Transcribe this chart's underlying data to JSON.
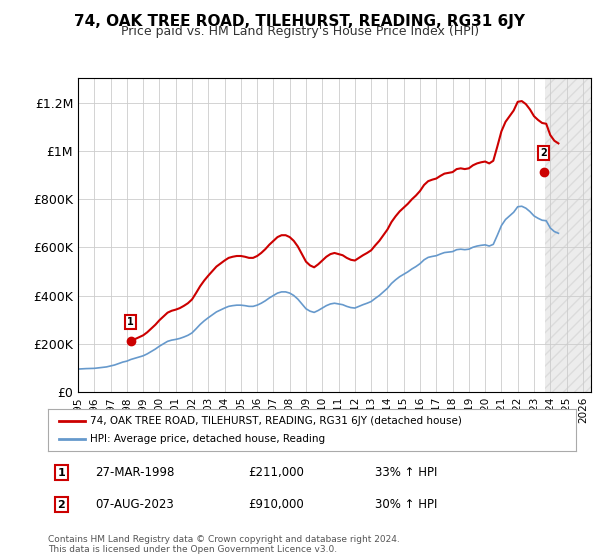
{
  "title": "74, OAK TREE ROAD, TILEHURST, READING, RG31 6JY",
  "subtitle": "Price paid vs. HM Land Registry's House Price Index (HPI)",
  "ylabel_ticks": [
    "£0",
    "£200K",
    "£400K",
    "£600K",
    "£800K",
    "£1M",
    "£1.2M"
  ],
  "ytick_values": [
    0,
    200000,
    400000,
    600000,
    800000,
    1000000,
    1200000
  ],
  "ylim": [
    0,
    1300000
  ],
  "xlim_start": 1995.0,
  "xlim_end": 2026.5,
  "xticks": [
    1995,
    1996,
    1997,
    1998,
    1999,
    2000,
    2001,
    2002,
    2003,
    2004,
    2005,
    2006,
    2007,
    2008,
    2009,
    2010,
    2011,
    2012,
    2013,
    2014,
    2015,
    2016,
    2017,
    2018,
    2019,
    2020,
    2021,
    2022,
    2023,
    2024,
    2025,
    2026
  ],
  "property_color": "#cc0000",
  "hpi_color": "#6699cc",
  "property_label": "74, OAK TREE ROAD, TILEHURST, READING, RG31 6JY (detached house)",
  "hpi_label": "HPI: Average price, detached house, Reading",
  "sale1_date": 1998.24,
  "sale1_price": 211000,
  "sale1_label": "1",
  "sale2_date": 2023.6,
  "sale2_price": 910000,
  "sale2_label": "2",
  "annotation1_date": "27-MAR-1998",
  "annotation1_price": "£211,000",
  "annotation1_hpi": "33% ↑ HPI",
  "annotation2_date": "07-AUG-2023",
  "annotation2_price": "£910,000",
  "annotation2_hpi": "30% ↑ HPI",
  "footer": "Contains HM Land Registry data © Crown copyright and database right 2024.\nThis data is licensed under the Open Government Licence v3.0.",
  "bg_color": "#ffffff",
  "plot_bg_color": "#ffffff",
  "grid_color": "#cccccc",
  "hpi_data_x": [
    1995.0,
    1995.25,
    1995.5,
    1995.75,
    1996.0,
    1996.25,
    1996.5,
    1996.75,
    1997.0,
    1997.25,
    1997.5,
    1997.75,
    1998.0,
    1998.25,
    1998.5,
    1998.75,
    1999.0,
    1999.25,
    1999.5,
    1999.75,
    2000.0,
    2000.25,
    2000.5,
    2000.75,
    2001.0,
    2001.25,
    2001.5,
    2001.75,
    2002.0,
    2002.25,
    2002.5,
    2002.75,
    2003.0,
    2003.25,
    2003.5,
    2003.75,
    2004.0,
    2004.25,
    2004.5,
    2004.75,
    2005.0,
    2005.25,
    2005.5,
    2005.75,
    2006.0,
    2006.25,
    2006.5,
    2006.75,
    2007.0,
    2007.25,
    2007.5,
    2007.75,
    2008.0,
    2008.25,
    2008.5,
    2008.75,
    2009.0,
    2009.25,
    2009.5,
    2009.75,
    2010.0,
    2010.25,
    2010.5,
    2010.75,
    2011.0,
    2011.25,
    2011.5,
    2011.75,
    2012.0,
    2012.25,
    2012.5,
    2012.75,
    2013.0,
    2013.25,
    2013.5,
    2013.75,
    2014.0,
    2014.25,
    2014.5,
    2014.75,
    2015.0,
    2015.25,
    2015.5,
    2015.75,
    2016.0,
    2016.25,
    2016.5,
    2016.75,
    2017.0,
    2017.25,
    2017.5,
    2017.75,
    2018.0,
    2018.25,
    2018.5,
    2018.75,
    2019.0,
    2019.25,
    2019.5,
    2019.75,
    2020.0,
    2020.25,
    2020.5,
    2020.75,
    2021.0,
    2021.25,
    2021.5,
    2021.75,
    2022.0,
    2022.25,
    2022.5,
    2022.75,
    2023.0,
    2023.25,
    2023.5,
    2023.75,
    2024.0,
    2024.25,
    2024.5
  ],
  "hpi_data_y": [
    95000,
    96000,
    97000,
    97500,
    98000,
    100000,
    102000,
    104000,
    108000,
    112000,
    118000,
    124000,
    128000,
    135000,
    140000,
    145000,
    150000,
    158000,
    168000,
    178000,
    190000,
    200000,
    210000,
    215000,
    218000,
    222000,
    228000,
    235000,
    245000,
    262000,
    280000,
    295000,
    308000,
    320000,
    332000,
    340000,
    348000,
    355000,
    358000,
    360000,
    360000,
    358000,
    355000,
    355000,
    360000,
    368000,
    378000,
    390000,
    400000,
    410000,
    415000,
    415000,
    410000,
    400000,
    385000,
    365000,
    345000,
    335000,
    330000,
    338000,
    348000,
    358000,
    365000,
    368000,
    365000,
    362000,
    355000,
    350000,
    348000,
    355000,
    362000,
    368000,
    375000,
    388000,
    400000,
    415000,
    430000,
    450000,
    465000,
    478000,
    488000,
    498000,
    510000,
    520000,
    532000,
    548000,
    558000,
    562000,
    565000,
    572000,
    578000,
    580000,
    582000,
    590000,
    592000,
    590000,
    592000,
    600000,
    605000,
    608000,
    610000,
    605000,
    612000,
    650000,
    690000,
    715000,
    730000,
    745000,
    768000,
    770000,
    762000,
    748000,
    730000,
    720000,
    712000,
    710000,
    680000,
    665000,
    658000
  ],
  "property_data_x": [
    1998.24,
    2023.6
  ],
  "property_data_y": [
    211000,
    910000
  ],
  "hpi_interpolated_x": [
    1995.0,
    1995.5,
    1996.0,
    1996.5,
    1997.0,
    1997.5,
    1998.0,
    1998.5,
    1999.0,
    1999.5,
    2000.0,
    2000.5,
    2001.0,
    2001.5,
    2002.0,
    2002.5,
    2003.0,
    2003.5,
    2004.0,
    2004.5,
    2005.0,
    2005.5,
    2006.0,
    2006.5,
    2007.0,
    2007.5,
    2008.0,
    2008.5,
    2009.0,
    2009.5,
    2010.0,
    2010.5,
    2011.0,
    2011.5,
    2012.0,
    2012.5,
    2013.0,
    2013.5,
    2014.0,
    2014.5,
    2015.0,
    2015.5,
    2016.0,
    2016.5,
    2017.0,
    2017.5,
    2018.0,
    2018.5,
    2019.0,
    2019.5,
    2020.0,
    2020.5,
    2021.0,
    2021.5,
    2022.0,
    2022.5,
    2023.0,
    2023.5,
    2024.0,
    2024.5
  ]
}
